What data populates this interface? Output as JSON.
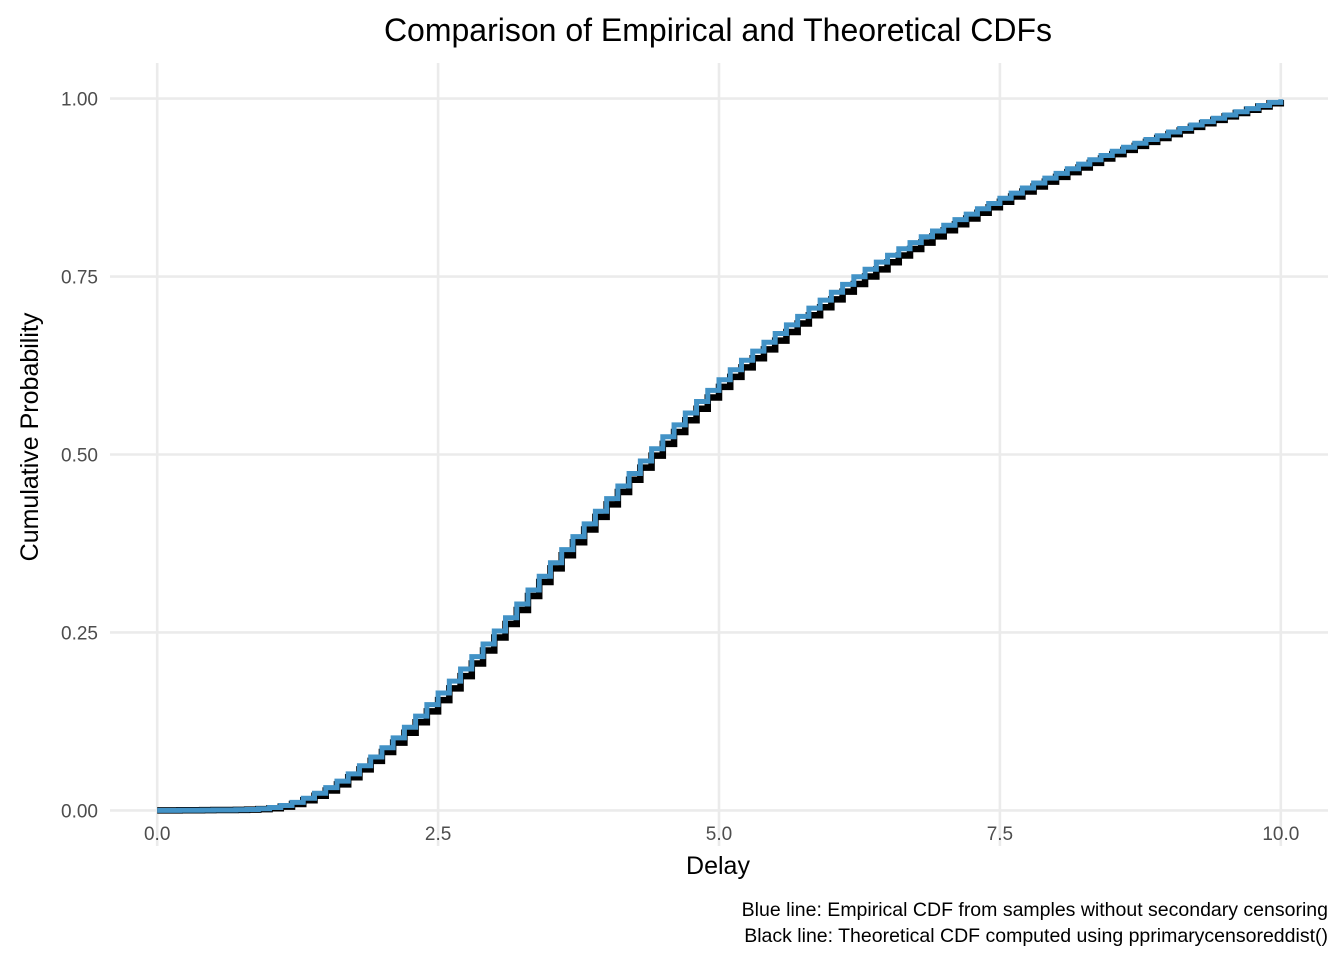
{
  "chart_data": {
    "type": "line",
    "title": "Comparison of Empirical and Theoretical CDFs",
    "xlabel": "Delay",
    "ylabel": "Cumulative Probability",
    "caption": [
      "Blue line: Empirical CDF from samples without secondary censoring",
      "Black line: Theoretical CDF computed using pprimarycensoreddist()"
    ],
    "xlim": [
      -0.42,
      10.42
    ],
    "ylim": [
      -0.05,
      1.05
    ],
    "x_ticks": [
      0,
      2.5,
      5,
      7.5,
      10
    ],
    "x_tick_labels": [
      "0.0",
      "2.5",
      "5.0",
      "7.5",
      "10.0"
    ],
    "y_ticks": [
      0,
      0.25,
      0.5,
      0.75,
      1
    ],
    "y_tick_labels": [
      "0.00",
      "0.25",
      "0.50",
      "0.75",
      "1.00"
    ],
    "grid": true,
    "legend": "none",
    "step_width": 0.1,
    "series": [
      {
        "color": "#000000",
        "line_style": "step",
        "x": [
          0,
          0.5,
          1.0,
          1.5,
          2.0,
          2.5,
          3.0,
          3.5,
          4.0,
          4.5,
          5.0,
          5.5,
          6.0,
          6.5,
          7.0,
          7.5,
          8.0,
          8.5,
          9.0,
          9.5,
          10.0
        ],
        "y": [
          0.0,
          0.0005,
          0.003,
          0.028,
          0.082,
          0.155,
          0.243,
          0.34,
          0.43,
          0.515,
          0.595,
          0.66,
          0.718,
          0.77,
          0.815,
          0.855,
          0.89,
          0.922,
          0.95,
          0.975,
          0.998
        ]
      },
      {
        "color": "#4292c6",
        "line_style": "step",
        "x": [
          0,
          0.5,
          1.0,
          1.5,
          2.0,
          2.5,
          3.0,
          3.5,
          4.0,
          4.5,
          5.0,
          5.5,
          6.0,
          6.5,
          7.0,
          7.5,
          8.0,
          8.5,
          9.0,
          9.5,
          10.0
        ],
        "y": [
          0.0,
          0.0005,
          0.004,
          0.032,
          0.088,
          0.165,
          0.252,
          0.348,
          0.438,
          0.525,
          0.605,
          0.67,
          0.728,
          0.78,
          0.822,
          0.86,
          0.895,
          0.926,
          0.953,
          0.977,
          0.999
        ]
      }
    ]
  }
}
